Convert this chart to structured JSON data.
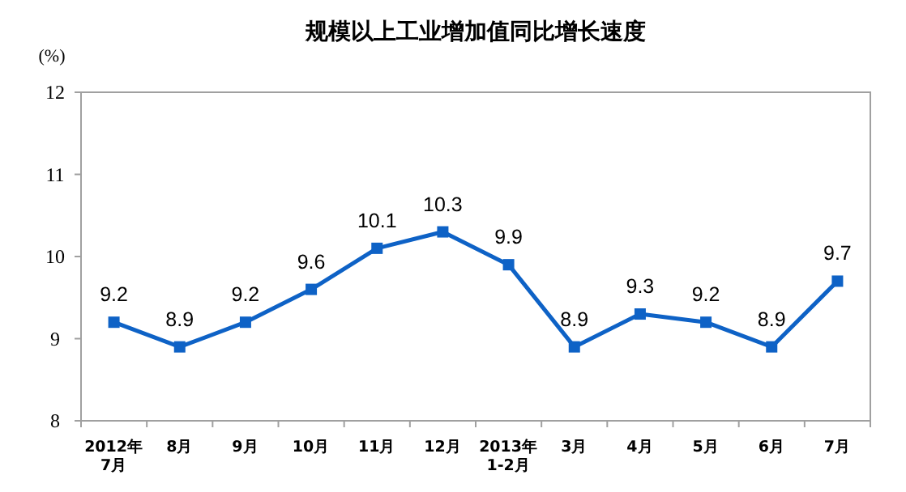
{
  "chart_data": {
    "type": "line",
    "title": "规模以上工业增加值同比增长速度",
    "ylabel": "(%)",
    "categories": [
      "2012年\n7月",
      "8月",
      "9月",
      "10月",
      "11月",
      "12月",
      "2013年\n1-2月",
      "3月",
      "4月",
      "5月",
      "6月",
      "7月"
    ],
    "series": [
      {
        "color": "#0e62c6",
        "values": [
          9.2,
          8.9,
          9.2,
          9.6,
          10.1,
          10.3,
          9.9,
          8.9,
          9.3,
          9.2,
          8.9,
          9.7
        ]
      }
    ],
    "ylim": [
      8,
      12
    ],
    "yticks": [
      8,
      9,
      10,
      11,
      12
    ],
    "grid": false,
    "marker": "square",
    "line_style": "solid",
    "data_labels": true
  }
}
